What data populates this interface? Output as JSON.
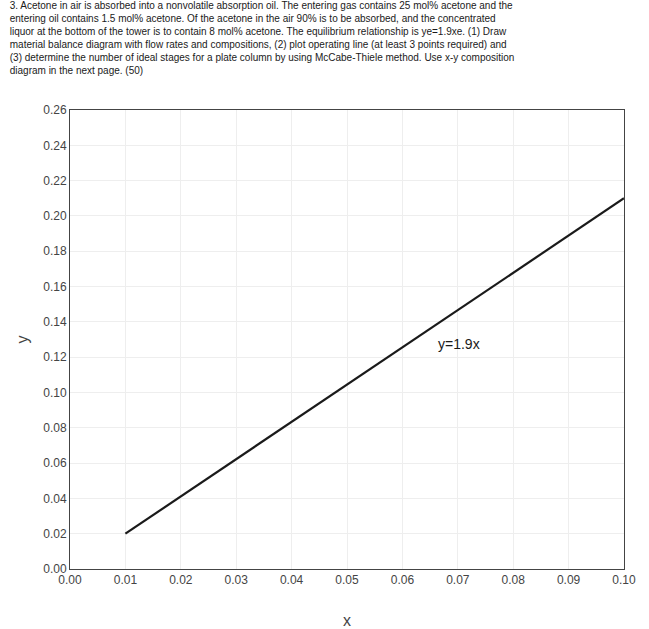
{
  "chart_data": {
    "type": "line",
    "title": [
      "3. Acetone in air is absorbed into a nonvolatile absorption oil. The entering gas contains 25 mol% acetone and the",
      "entering oil contains 1.5 mol% acetone. Of the acetone in the air 90% is to be absorbed, and the concentrated",
      "liquor at the bottom of the tower is to contain 8 mol% acetone. The equilibrium relationship is ye=1.9xe. (1) Draw",
      "material balance diagram with flow rates and compositions, (2) plot operating line (at least 3 points required) and",
      "(3) determine the number of ideal stages for a plate column by using McCabe-Thiele method. Use x-y composition",
      "diagram in the next page. (50)"
    ],
    "x_label": "x",
    "y_label": "y",
    "x": [
      0.01,
      0.1
    ],
    "values": [
      0.02,
      0.21
    ],
    "color": "#1a1a1a",
    "annotations": [
      {
        "text": "y=1.9x",
        "x": 0.066,
        "y": 0.122
      }
    ],
    "xlim": [
      0.0,
      0.1
    ],
    "ylim": [
      0.0,
      0.26
    ],
    "xticks": [
      {
        "value": 0.0,
        "label": "0.00"
      },
      0.01,
      0.02,
      0.03,
      0.04,
      0.05,
      0.06,
      0.07,
      0.08,
      0.09,
      {
        "value": 0.1,
        "label": "0.10"
      }
    ],
    "yticks": [
      {
        "value": 0.0,
        "label": "0.00"
      },
      0.02,
      0.04,
      0.06,
      0.08,
      {
        "value": 0.1,
        "label": "0.10"
      },
      0.12,
      0.14,
      0.16,
      0.18,
      {
        "value": 0.2,
        "label": "0.20"
      },
      0.22,
      0.24,
      0.26
    ],
    "grid": true
  }
}
